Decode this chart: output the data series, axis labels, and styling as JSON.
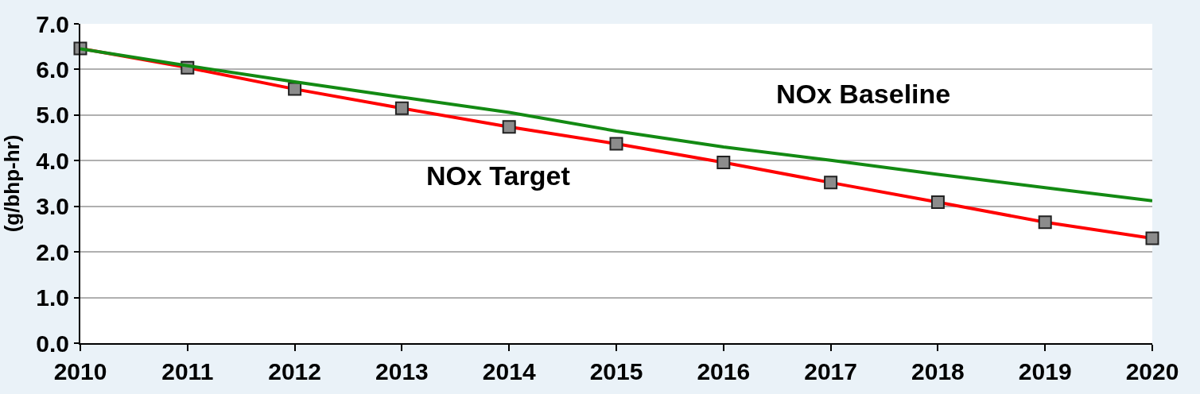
{
  "chart_data": {
    "type": "line",
    "ylabel": "(g/bhp-hr)",
    "x": [
      2010,
      2011,
      2012,
      2013,
      2014,
      2015,
      2016,
      2017,
      2018,
      2019,
      2020
    ],
    "xlim": [
      2010,
      2020
    ],
    "xticks": [
      2010,
      2011,
      2012,
      2013,
      2014,
      2015,
      2016,
      2017,
      2018,
      2019,
      2020
    ],
    "ylim": [
      0,
      7
    ],
    "yticks": [
      {
        "value": 0,
        "label": "0.0"
      },
      {
        "value": 1,
        "label": "1.0"
      },
      {
        "value": 2,
        "label": "2.0"
      },
      {
        "value": 3,
        "label": "3.0"
      },
      {
        "value": 4,
        "label": "4.0"
      },
      {
        "value": 5,
        "label": "5.0"
      },
      {
        "value": 6,
        "label": "6.0"
      },
      {
        "value": 7,
        "label": "7.0"
      }
    ],
    "grid": "y",
    "legend": false,
    "series": [
      {
        "name": "NOx Target",
        "color": "#ff0000",
        "marker": "square",
        "values": [
          6.46,
          6.04,
          5.57,
          5.15,
          4.74,
          4.37,
          3.96,
          3.52,
          3.09,
          2.65,
          2.3
        ]
      },
      {
        "name": "NOx Baseline",
        "color": "#138a13",
        "marker": "none",
        "values": [
          6.45,
          6.08,
          5.73,
          5.39,
          5.06,
          4.65,
          4.3,
          4.01,
          3.7,
          3.41,
          3.12
        ]
      }
    ]
  }
}
